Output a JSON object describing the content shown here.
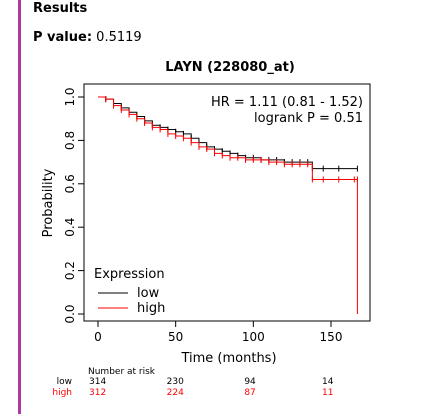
{
  "header": {
    "results_label": "Results",
    "p_value_label": "P value:",
    "p_value": "0.5119"
  },
  "colors": {
    "accent_bar": "#b03a9a",
    "low": "#000000",
    "high": "#ff0000"
  },
  "chart_data": {
    "type": "line",
    "subtype": "kaplan-meier",
    "title": "LAYN (228080_at)",
    "xlabel": "Time (months)",
    "ylabel": "Probability",
    "xlim": [
      0,
      175
    ],
    "ylim": [
      0,
      1
    ],
    "xticks": [
      "0",
      "50",
      "100",
      "150"
    ],
    "yticks": [
      "0.0",
      "0.2",
      "0.4",
      "0.6",
      "0.8",
      "1.0"
    ],
    "annotations": [
      "HR = 1.11 (0.81 - 1.52)",
      "logrank P = 0.51"
    ],
    "legend": {
      "title": "Expression",
      "position": "bottom-left",
      "entries": [
        "low",
        "high"
      ]
    },
    "series": [
      {
        "name": "low",
        "color": "#000000",
        "x": [
          0,
          5,
          10,
          15,
          20,
          25,
          30,
          35,
          40,
          45,
          50,
          55,
          60,
          65,
          70,
          75,
          80,
          85,
          90,
          95,
          100,
          105,
          110,
          115,
          120,
          125,
          130,
          135,
          138,
          145,
          155,
          167
        ],
        "y": [
          1.0,
          0.99,
          0.97,
          0.95,
          0.93,
          0.91,
          0.89,
          0.87,
          0.86,
          0.85,
          0.84,
          0.83,
          0.81,
          0.79,
          0.77,
          0.76,
          0.75,
          0.74,
          0.73,
          0.72,
          0.72,
          0.71,
          0.71,
          0.71,
          0.7,
          0.7,
          0.7,
          0.7,
          0.67,
          0.67,
          0.67,
          0.67
        ]
      },
      {
        "name": "high",
        "color": "#ff0000",
        "x": [
          0,
          5,
          10,
          15,
          20,
          25,
          30,
          35,
          40,
          45,
          50,
          55,
          60,
          65,
          70,
          75,
          80,
          85,
          90,
          95,
          100,
          105,
          110,
          115,
          120,
          125,
          130,
          135,
          138,
          145,
          155,
          165,
          167,
          167
        ],
        "y": [
          1.0,
          0.99,
          0.96,
          0.94,
          0.92,
          0.9,
          0.88,
          0.86,
          0.85,
          0.83,
          0.82,
          0.81,
          0.79,
          0.77,
          0.76,
          0.74,
          0.73,
          0.72,
          0.72,
          0.71,
          0.71,
          0.71,
          0.7,
          0.7,
          0.69,
          0.69,
          0.69,
          0.69,
          0.62,
          0.62,
          0.62,
          0.62,
          0.62,
          0.0
        ]
      }
    ],
    "risk_table": {
      "title": "Number at risk",
      "times": [
        0,
        50,
        100,
        150
      ],
      "rows": [
        {
          "label": "low",
          "values": [
            "314",
            "230",
            "94",
            "14"
          ]
        },
        {
          "label": "high",
          "values": [
            "312",
            "224",
            "87",
            "11"
          ]
        }
      ]
    }
  }
}
